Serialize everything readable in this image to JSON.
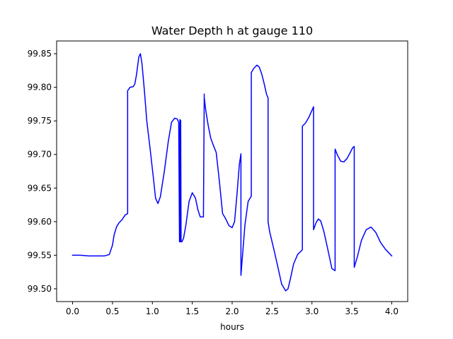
{
  "chart_data": {
    "type": "line",
    "title": "Water Depth h at gauge 110",
    "xlabel": "hours",
    "ylabel": "",
    "xlim": [
      -0.2,
      4.2
    ],
    "ylim": [
      99.481,
      99.869
    ],
    "xticks": [
      0.0,
      0.5,
      1.0,
      1.5,
      2.0,
      2.5,
      3.0,
      3.5,
      4.0
    ],
    "xtick_labels": [
      "0.0",
      "0.5",
      "1.0",
      "1.5",
      "2.0",
      "2.5",
      "3.0",
      "3.5",
      "4.0"
    ],
    "yticks": [
      99.5,
      99.55,
      99.6,
      99.65,
      99.7,
      99.75,
      99.8,
      99.85
    ],
    "ytick_labels": [
      "99.50",
      "99.55",
      "99.60",
      "99.65",
      "99.70",
      "99.75",
      "99.80",
      "99.85"
    ],
    "grid": false,
    "line_color": "#0000ff",
    "series": [
      {
        "x": [
          0.0,
          0.1,
          0.2,
          0.3,
          0.4,
          0.46,
          0.5,
          0.52,
          0.55,
          0.58,
          0.62,
          0.66,
          0.69,
          0.69,
          0.72,
          0.76,
          0.78,
          0.8,
          0.83,
          0.85,
          0.87,
          0.9,
          0.93,
          0.97,
          1.01,
          1.04,
          1.07,
          1.1,
          1.15,
          1.2,
          1.24,
          1.28,
          1.31,
          1.33,
          1.34,
          1.345,
          1.35,
          1.355,
          1.36,
          1.37,
          1.37,
          1.39,
          1.42,
          1.46,
          1.5,
          1.54,
          1.57,
          1.6,
          1.64,
          1.65,
          1.65,
          1.67,
          1.7,
          1.73,
          1.76,
          1.8,
          1.84,
          1.88,
          1.92,
          1.96,
          2.0,
          2.03,
          2.06,
          2.09,
          2.11,
          2.11,
          2.13,
          2.16,
          2.2,
          2.24,
          2.24,
          2.27,
          2.31,
          2.34,
          2.37,
          2.4,
          2.43,
          2.45,
          2.45,
          2.47,
          2.52,
          2.57,
          2.62,
          2.67,
          2.7,
          2.73,
          2.77,
          2.82,
          2.88,
          2.88,
          2.92,
          2.96,
          2.99,
          3.02,
          3.02,
          3.05,
          3.08,
          3.11,
          3.15,
          3.2,
          3.25,
          3.29,
          3.29,
          3.32,
          3.36,
          3.4,
          3.44,
          3.48,
          3.51,
          3.53,
          3.53,
          3.57,
          3.62,
          3.68,
          3.74,
          3.8,
          3.86,
          3.92,
          4.0
        ],
        "values": [
          99.55,
          99.55,
          99.549,
          99.549,
          99.549,
          99.551,
          99.565,
          99.58,
          99.592,
          99.598,
          99.603,
          99.61,
          99.612,
          99.795,
          99.8,
          99.801,
          99.805,
          99.818,
          99.845,
          99.85,
          99.835,
          99.795,
          99.75,
          99.71,
          99.668,
          99.635,
          99.627,
          99.637,
          99.675,
          99.72,
          99.748,
          99.754,
          99.753,
          99.748,
          99.57,
          99.752,
          99.57,
          99.751,
          99.57,
          99.57,
          99.57,
          99.575,
          99.595,
          99.63,
          99.643,
          99.635,
          99.618,
          99.607,
          99.607,
          99.79,
          99.785,
          99.765,
          99.743,
          99.725,
          99.715,
          99.703,
          99.66,
          99.612,
          99.604,
          99.594,
          99.591,
          99.6,
          99.64,
          99.685,
          99.701,
          99.52,
          99.55,
          99.595,
          99.63,
          99.638,
          99.822,
          99.828,
          99.833,
          99.83,
          99.82,
          99.806,
          99.79,
          99.784,
          99.6,
          99.585,
          99.56,
          99.534,
          99.507,
          99.497,
          99.5,
          99.515,
          99.537,
          99.551,
          99.558,
          99.742,
          99.747,
          99.755,
          99.763,
          99.771,
          99.588,
          99.598,
          99.604,
          99.601,
          99.585,
          99.558,
          99.53,
          99.527,
          99.708,
          99.699,
          99.69,
          99.689,
          99.694,
          99.703,
          99.71,
          99.712,
          99.532,
          99.548,
          99.572,
          99.588,
          99.592,
          99.584,
          99.569,
          99.559,
          99.549
        ]
      }
    ]
  }
}
